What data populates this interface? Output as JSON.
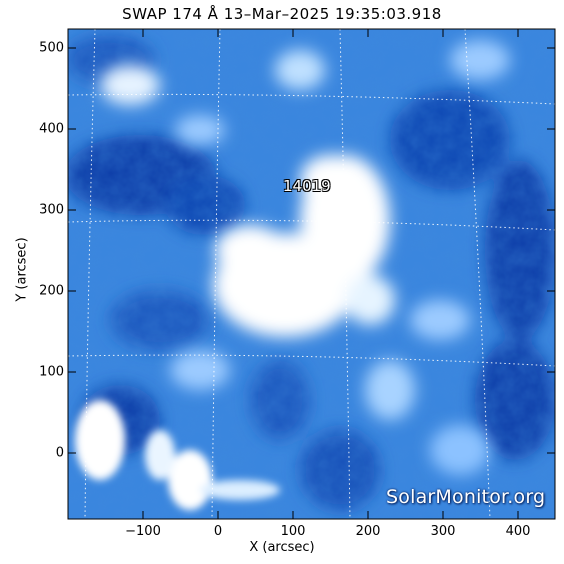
{
  "title": "SWAP 174 Å 13–Mar–2025 19:35:03.918",
  "xlabel": "X (arcsec)",
  "ylabel": "Y (arcsec)",
  "region_label": "14019",
  "watermark": "SolarMonitor.org",
  "x_ticks": [
    "−100",
    "0",
    "100",
    "200",
    "300",
    "400"
  ],
  "y_ticks": [
    "500",
    "400",
    "300",
    "200",
    "100",
    "0"
  ],
  "colors": {
    "deep_blue": "#0d3ea8",
    "mid_blue": "#3a86df",
    "bright": "#ffffff"
  }
}
